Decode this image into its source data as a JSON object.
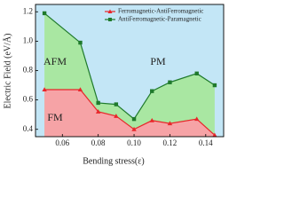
{
  "chart_data": {
    "type": "area",
    "x_label": "Bending stress(ε)",
    "y_label": "Electric Field (eV/Å)",
    "x": [
      0.05,
      0.07,
      0.08,
      0.09,
      0.1,
      0.11,
      0.12,
      0.135,
      0.145
    ],
    "series": [
      {
        "name": "Ferromagnetic-AntiFerromagnetic",
        "color": "#e8262a",
        "fill": "#f6a3a6",
        "marker": "triangle",
        "values": [
          0.67,
          0.67,
          0.52,
          0.49,
          0.4,
          0.46,
          0.44,
          0.47,
          0.36
        ]
      },
      {
        "name": "AntiFerromagnetic-Paramagnetic",
        "color": "#1f7a2c",
        "fill": "#a9e7a2",
        "marker": "square",
        "values": [
          1.19,
          0.99,
          0.58,
          0.57,
          0.47,
          0.66,
          0.72,
          0.78,
          0.7
        ]
      }
    ],
    "background": "#c3e6f6",
    "annotations": [
      "AFM",
      "PM",
      "FM"
    ],
    "xlim": [
      0.045,
      0.15
    ],
    "xticks": [
      {
        "value": 0.06,
        "label": "0.06"
      },
      {
        "value": 0.08,
        "label": "0.08"
      },
      {
        "value": 0.1,
        "label": "0.10"
      },
      {
        "value": 0.12,
        "label": "0.12"
      },
      {
        "value": 0.14,
        "label": "0.14"
      }
    ],
    "ylim": [
      0.35,
      1.25
    ],
    "yticks": [
      0.4,
      0.6,
      0.8,
      {
        "value": 1.0,
        "label": "1.0"
      },
      1.2
    ]
  }
}
